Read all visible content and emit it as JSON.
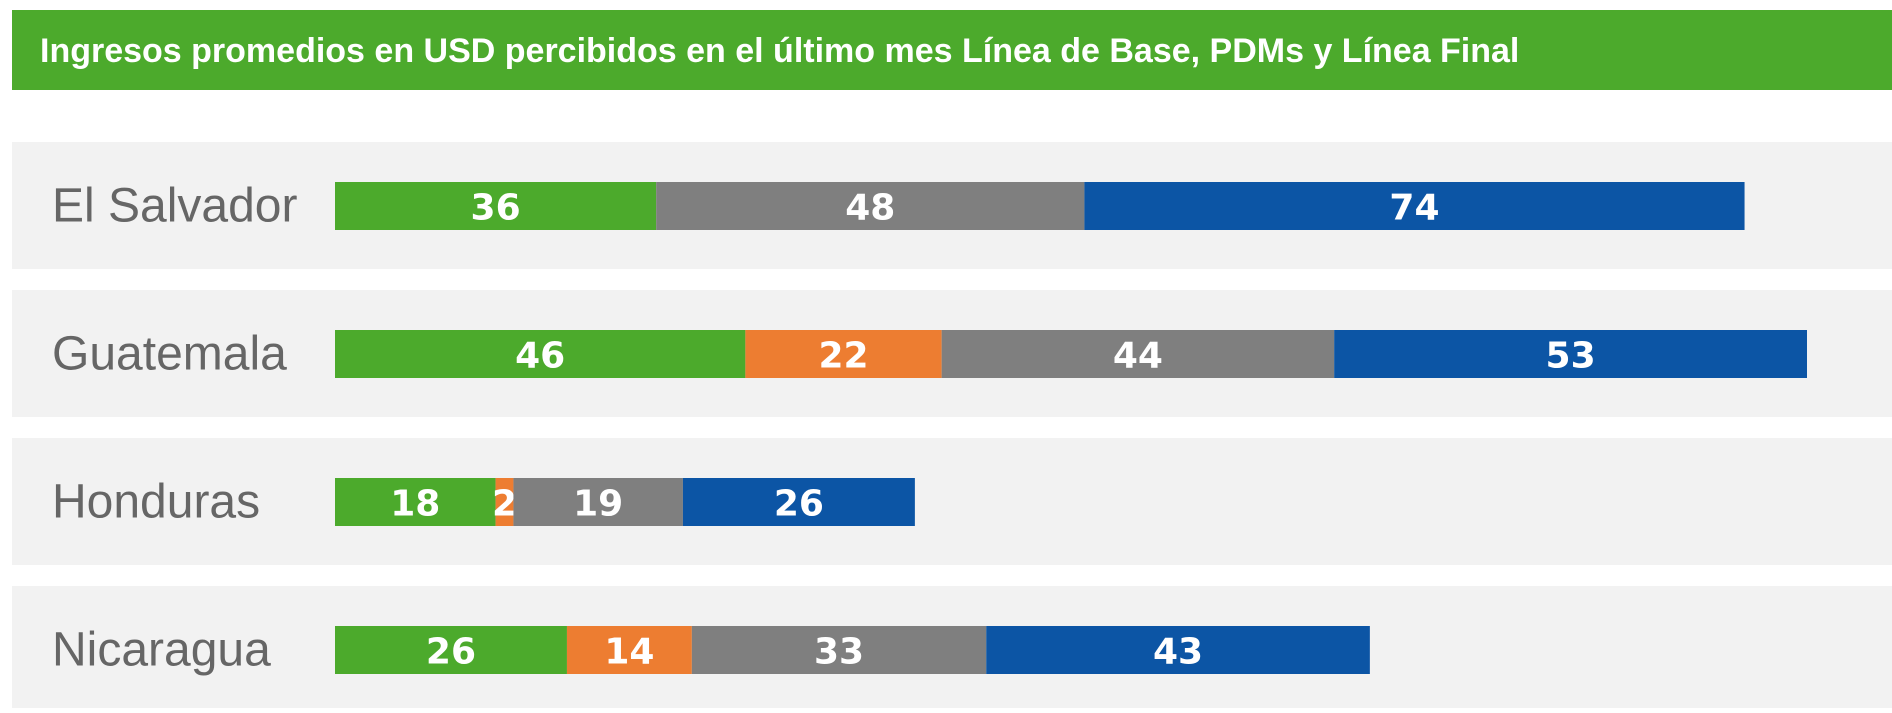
{
  "chart_data": {
    "type": "stacked_barh",
    "title": "Ingresos promedios en USD percibidos en el último mes Línea de Base, PDMs y Línea Final",
    "categories": [
      "El Salvador",
      "Guatemala",
      "Honduras",
      "Nicaragua"
    ],
    "series": [
      {
        "color": "#4caa2c",
        "values": [
          36,
          46,
          18,
          26
        ]
      },
      {
        "color": "#ed7d31",
        "values": [
          null,
          22,
          2,
          14
        ]
      },
      {
        "color": "#7f7f7f",
        "values": [
          48,
          44,
          19,
          33
        ]
      },
      {
        "color": "#0c55a5",
        "values": [
          74,
          53,
          26,
          43
        ]
      }
    ],
    "title_color": "#4caa2c",
    "row_color": "#f2f2f2"
  }
}
